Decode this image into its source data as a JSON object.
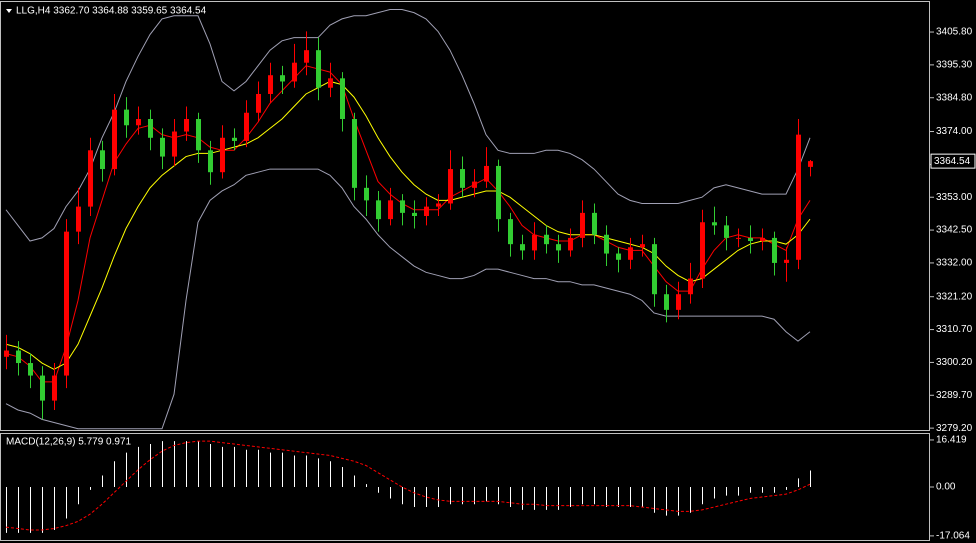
{
  "chart_data": [
    {
      "type": "candlestick",
      "title": "LLG,H4  3362.70 3364.88 3359.65 3364.54",
      "up_color": "#ff0000",
      "down_color": "#32cd32",
      "open": [
        3302,
        3304,
        3300,
        3296,
        3288,
        3296,
        3342,
        3350,
        3368,
        3362,
        3381,
        3376,
        3378,
        3372,
        3366,
        3374,
        3378,
        3368,
        3361,
        3372,
        3371,
        3380,
        3386,
        3392,
        3390,
        3396,
        3400,
        3388,
        3391,
        3378,
        3356,
        3352,
        3346,
        3352,
        3348,
        3347,
        3350,
        3351,
        3362,
        3356,
        3358,
        3363,
        3346,
        3338,
        3336,
        3341,
        3338,
        3336,
        3340,
        3348,
        3341,
        3335,
        3333,
        3337,
        3338,
        3322,
        3317,
        3322,
        3327,
        3345,
        3344,
        3340,
        3340,
        3339,
        3340,
        3332,
        3333,
        3362.7
      ],
      "high": [
        3309,
        3307,
        3303,
        3299,
        3300,
        3346,
        3356,
        3372,
        3371,
        3386,
        3385,
        3382,
        3381,
        3375,
        3378,
        3382,
        3380,
        3371,
        3376,
        3375,
        3384,
        3390,
        3396,
        3395,
        3402,
        3406,
        3404,
        3396,
        3393,
        3380,
        3360,
        3355,
        3356,
        3354,
        3352,
        3353,
        3354,
        3368,
        3366,
        3362,
        3369,
        3365,
        3348,
        3341,
        3345,
        3344,
        3341,
        3343,
        3352,
        3351,
        3344,
        3337,
        3340,
        3341,
        3340,
        3325,
        3326,
        3332,
        3349,
        3350,
        3347,
        3343,
        3344,
        3343,
        3342,
        3337,
        3378,
        3364.88
      ],
      "low": [
        3298,
        3296,
        3292,
        3282,
        3285,
        3292,
        3338,
        3347,
        3358,
        3360,
        3372,
        3373,
        3368,
        3362,
        3363,
        3371,
        3364,
        3357,
        3359,
        3368,
        3369,
        3377,
        3383,
        3386,
        3388,
        3392,
        3384,
        3385,
        3374,
        3352,
        3347,
        3342,
        3344,
        3344,
        3343,
        3344,
        3347,
        3349,
        3353,
        3353,
        3356,
        3342,
        3334,
        3333,
        3333,
        3335,
        3332,
        3334,
        3337,
        3338,
        3331,
        3329,
        3330,
        3334,
        3318,
        3313,
        3314,
        3319,
        3324,
        3341,
        3336,
        3337,
        3335,
        3336,
        3328,
        3326,
        3330,
        3359.65
      ],
      "close": [
        3304,
        3300,
        3296,
        3288,
        3296,
        3342,
        3350,
        3368,
        3362,
        3381,
        3376,
        3378,
        3372,
        3366,
        3374,
        3378,
        3368,
        3361,
        3372,
        3371,
        3380,
        3386,
        3392,
        3390,
        3396,
        3400,
        3388,
        3391,
        3378,
        3356,
        3352,
        3346,
        3352,
        3348,
        3347,
        3350,
        3351,
        3362,
        3356,
        3358,
        3363,
        3346,
        3338,
        3336,
        3341,
        3338,
        3336,
        3340,
        3348,
        3341,
        3335,
        3333,
        3337,
        3338,
        3322,
        3317,
        3322,
        3327,
        3345,
        3344,
        3340,
        3340,
        3339,
        3340,
        3332,
        3333,
        3373,
        3364.54
      ],
      "overlays": [
        {
          "color": "#ff0000",
          "values": [
            3303,
            3302,
            3299,
            3294,
            3294,
            3305,
            3320,
            3340,
            3352,
            3364,
            3370,
            3375,
            3376,
            3373,
            3372,
            3373,
            3372,
            3369,
            3368,
            3368,
            3372,
            3377,
            3383,
            3387,
            3391,
            3395,
            3394,
            3393,
            3389,
            3378,
            3368,
            3358,
            3354,
            3351,
            3349,
            3349,
            3349,
            3353,
            3355,
            3357,
            3359,
            3355,
            3350,
            3344,
            3341,
            3340,
            3339,
            3339,
            3341,
            3341,
            3339,
            3337,
            3336,
            3336,
            3331,
            3326,
            3323,
            3323,
            3330,
            3336,
            3340,
            3341,
            3340,
            3340,
            3338,
            3336,
            3346,
            3352
          ]
        },
        {
          "color": "#ffff00",
          "values": [
            3306,
            3305,
            3303,
            3300,
            3298,
            3300,
            3306,
            3315,
            3324,
            3334,
            3343,
            3350,
            3356,
            3360,
            3363,
            3366,
            3367,
            3367,
            3368,
            3369,
            3370,
            3372,
            3375,
            3378,
            3382,
            3386,
            3388,
            3390,
            3389,
            3385,
            3379,
            3372,
            3366,
            3361,
            3357,
            3354,
            3352,
            3352,
            3353,
            3354,
            3355,
            3355,
            3353,
            3350,
            3347,
            3344,
            3342,
            3341,
            3341,
            3341,
            3340,
            3339,
            3338,
            3337,
            3335,
            3331,
            3328,
            3326,
            3327,
            3330,
            3333,
            3336,
            3338,
            3339,
            3339,
            3338,
            3341,
            3346
          ]
        },
        {
          "color": "#a0a0b4",
          "values": [
            3349,
            3344,
            3339,
            3340,
            3343,
            3350,
            3355,
            3362,
            3372,
            3380,
            3390,
            3398,
            3405,
            3410,
            3411,
            3411,
            3411,
            3402,
            3390,
            3387,
            3390,
            3395,
            3400,
            3403,
            3404,
            3404,
            3404,
            3408,
            3410,
            3411,
            3411,
            3412,
            3413,
            3413,
            3412,
            3410,
            3406,
            3400,
            3392,
            3383,
            3373,
            3368,
            3367,
            3367,
            3367,
            3368,
            3368,
            3367,
            3365,
            3362,
            3358,
            3354,
            3352,
            3351,
            3351,
            3351,
            3351,
            3352,
            3353,
            3356,
            3357,
            3356,
            3355,
            3354,
            3354,
            3354,
            3362,
            3372
          ]
        },
        {
          "color": "#a0a0b4",
          "values": [
            3287,
            3285,
            3284,
            3282,
            3281,
            3280,
            3279,
            3279,
            3279,
            3279,
            3279,
            3279,
            3279,
            3279,
            3290,
            3320,
            3345,
            3352,
            3355,
            3357,
            3360,
            3361,
            3362,
            3362,
            3362,
            3362,
            3362,
            3360,
            3356,
            3350,
            3346,
            3341,
            3337,
            3334,
            3331,
            3329,
            3328,
            3327,
            3327,
            3328,
            3330,
            3330,
            3329,
            3328,
            3327,
            3327,
            3326,
            3326,
            3325,
            3325,
            3324,
            3323,
            3322,
            3320,
            3316,
            3315,
            3315,
            3315,
            3315,
            3315,
            3315,
            3315,
            3315,
            3315,
            3314,
            3310,
            3307,
            3310
          ]
        }
      ],
      "ylim": [
        3278.6,
        3415.4
      ],
      "yticks": [
        {
          "value": 3405.8,
          "label": "3405.80"
        },
        {
          "value": 3395.3,
          "label": "3395.30"
        },
        {
          "value": 3384.8,
          "label": "3384.80"
        },
        {
          "value": 3374,
          "label": "3374.00"
        },
        {
          "value": 3363.5,
          "label": "3363.50"
        },
        {
          "value": 3353,
          "label": "3353.00"
        },
        {
          "value": 3342.5,
          "label": "3342.50"
        },
        {
          "value": 3332,
          "label": "3332.00"
        },
        {
          "value": 3321.2,
          "label": "3321.20"
        },
        {
          "value": 3310.7,
          "label": "3310.70"
        },
        {
          "value": 3300.2,
          "label": "3300.20"
        },
        {
          "value": 3289.7,
          "label": "3289.70"
        },
        {
          "value": 3279.2,
          "label": "3279.20"
        }
      ]
    },
    {
      "type": "macd",
      "title": "MACD(12,26,9) 5.779 0.971",
      "histogram": {
        "color": "#ffffff",
        "values": [
          -16,
          -16,
          -16,
          -16,
          -15,
          -11,
          -6,
          -1,
          4,
          9,
          12,
          14,
          15,
          16,
          16,
          16,
          16,
          15,
          14,
          14,
          13,
          13,
          12,
          12,
          11,
          11,
          10,
          9,
          7,
          4,
          1,
          -2,
          -4,
          -6,
          -7,
          -7,
          -7,
          -6,
          -6,
          -6,
          -5,
          -6,
          -7,
          -8,
          -8,
          -8,
          -8,
          -7,
          -6,
          -6,
          -7,
          -7,
          -7,
          -7,
          -9,
          -10,
          -10,
          -9,
          -6,
          -4,
          -3,
          -3,
          -2,
          -2,
          -2,
          -1,
          3,
          5.779
        ]
      },
      "signal": {
        "color": "#ff0000",
        "values": [
          -14,
          -14.5,
          -15,
          -15,
          -14.5,
          -13.5,
          -12,
          -9.5,
          -6,
          -2,
          2,
          6,
          9.5,
          12.5,
          14.5,
          15.5,
          16,
          16,
          15.5,
          15,
          14.5,
          14,
          13.5,
          13,
          12.5,
          12,
          11.5,
          11,
          10,
          9,
          7.5,
          5,
          2.5,
          0,
          -2,
          -3.5,
          -4.5,
          -5,
          -5,
          -5,
          -5,
          -5,
          -5.5,
          -6,
          -6,
          -6.5,
          -6.5,
          -6.5,
          -6.5,
          -6.5,
          -6.5,
          -6.5,
          -6.5,
          -7,
          -7.5,
          -8,
          -8.5,
          -8.5,
          -8,
          -7,
          -6,
          -5,
          -4,
          -3.5,
          -3,
          -2.5,
          -1,
          0.971
        ]
      },
      "ylim": [
        -18.5,
        18.5
      ],
      "yticks": [
        16.419,
        {
          "value": 0,
          "label": "0.00"
        },
        -17.064
      ]
    }
  ]
}
